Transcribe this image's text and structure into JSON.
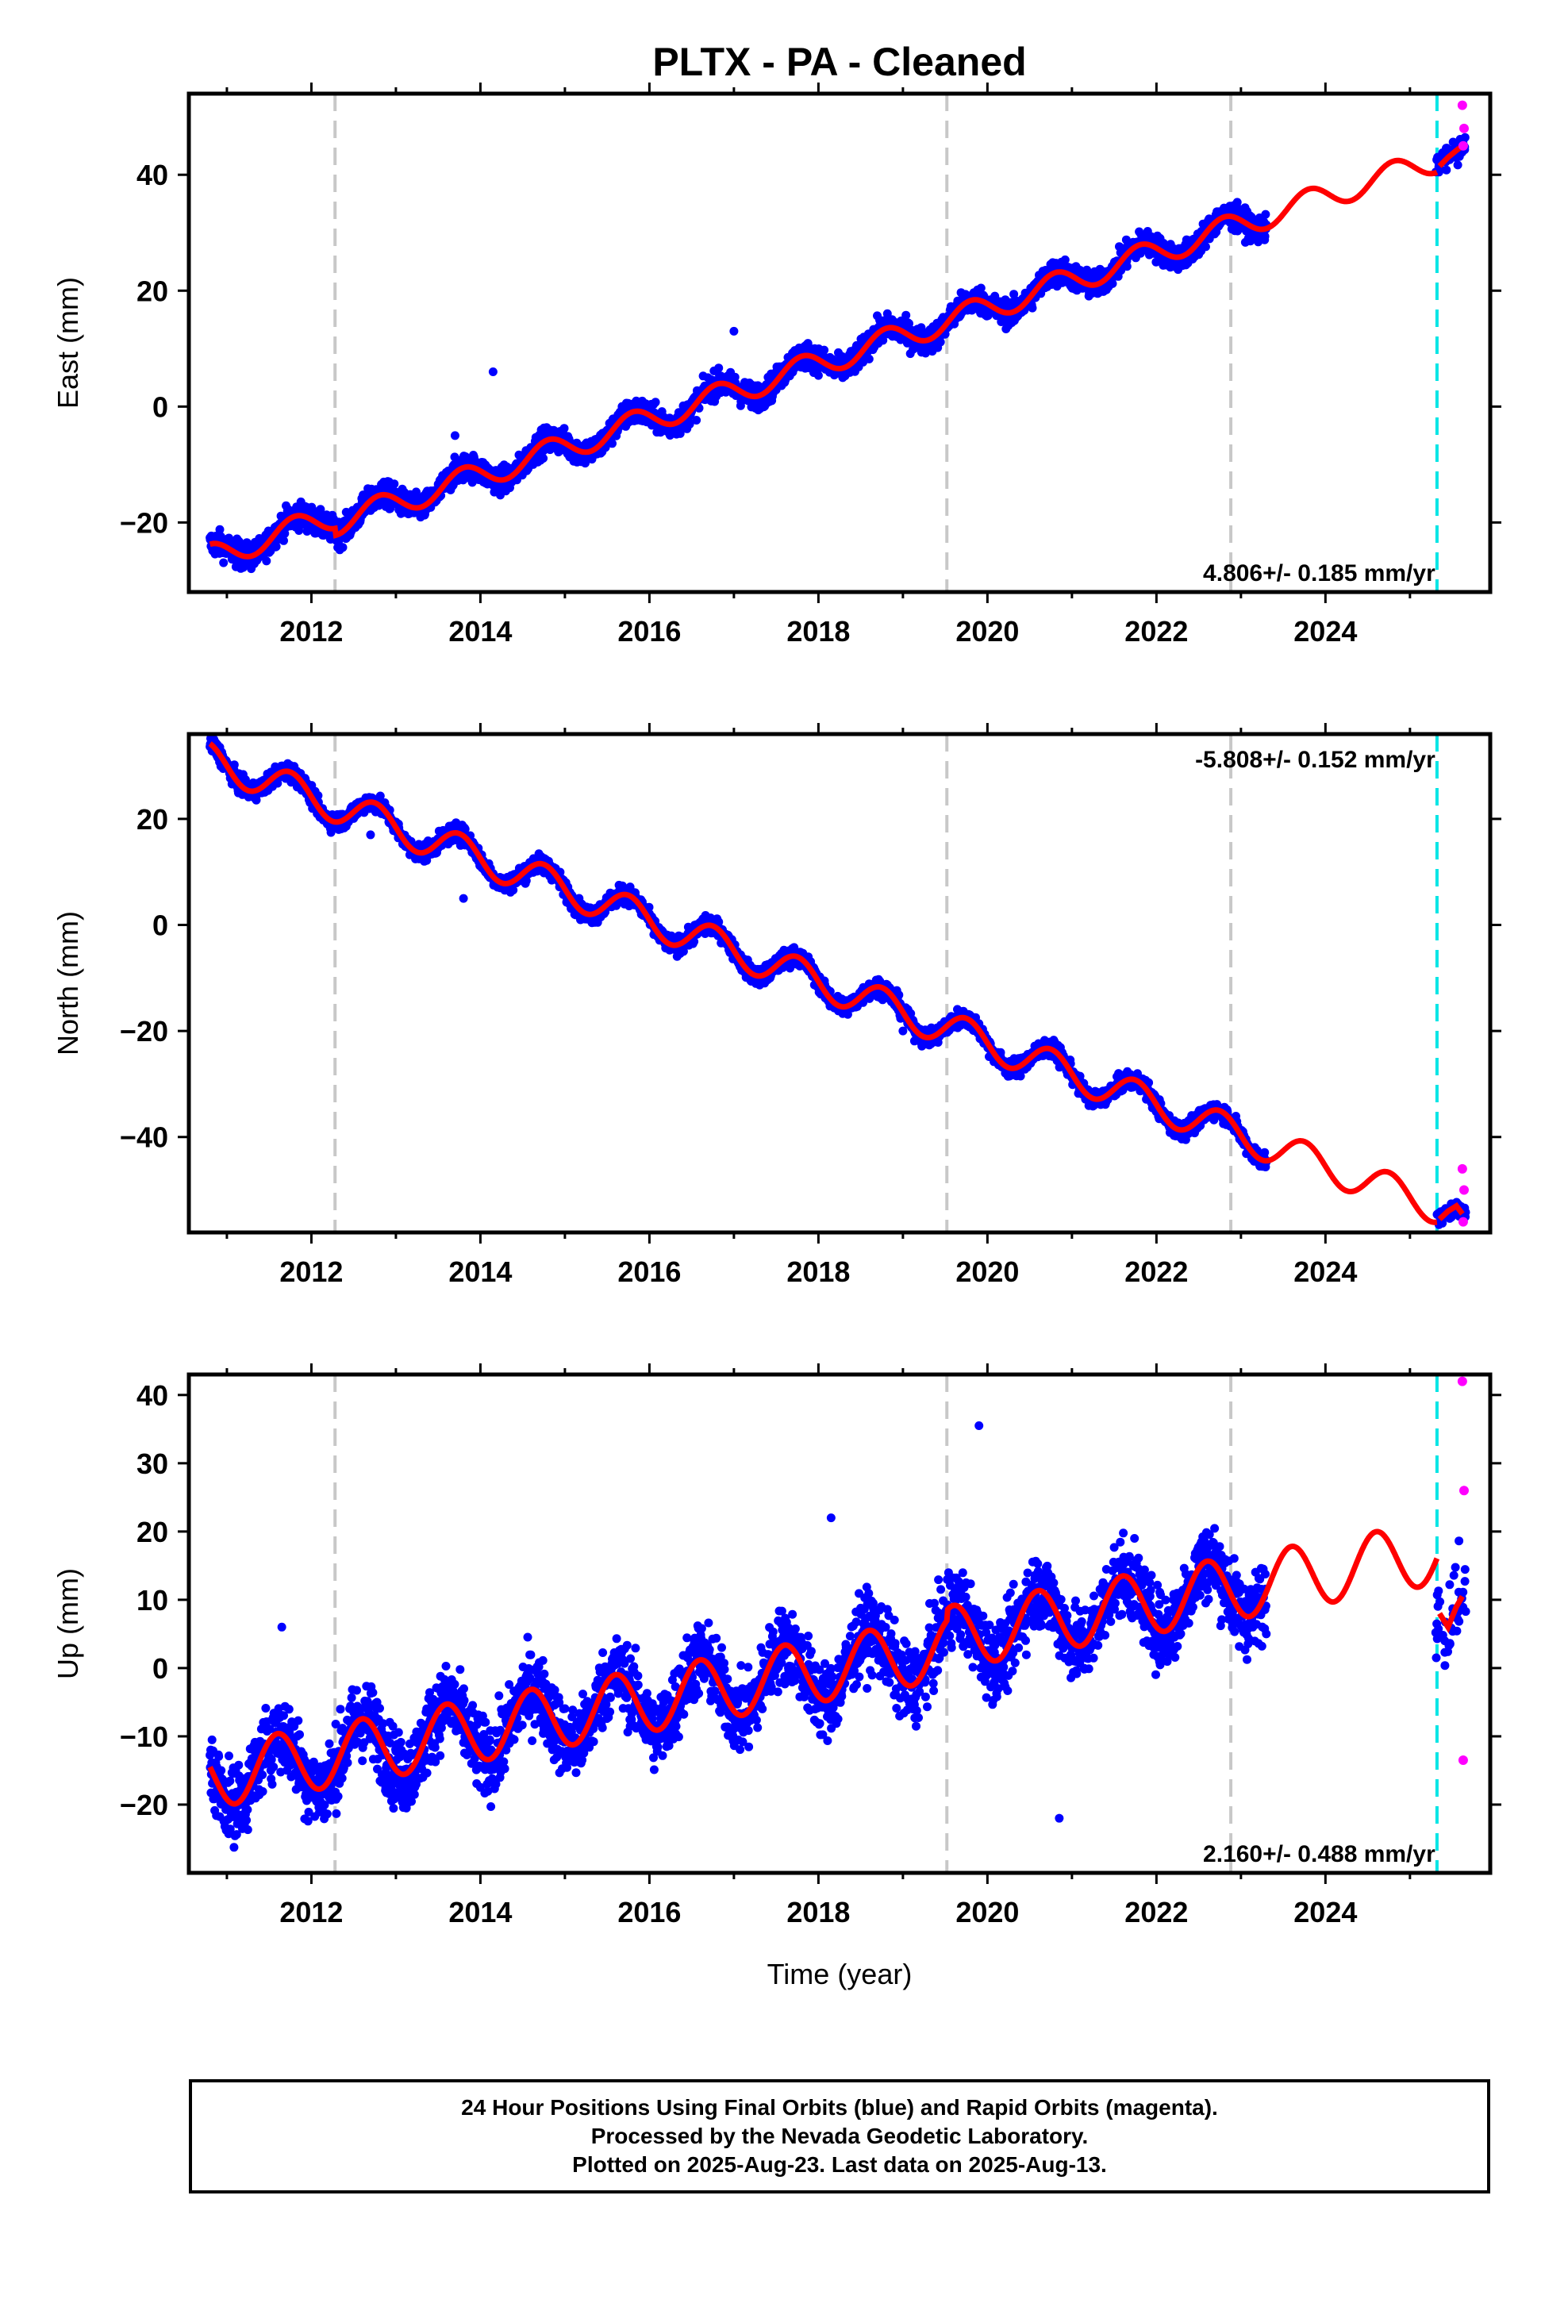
{
  "chart_data": {
    "type": "scatter",
    "title": "PLTX  - PA - Cleaned",
    "xlabel": "Time (year)",
    "xlim": [
      2010.55,
      2025.95
    ],
    "xticks": [
      2012,
      2014,
      2016,
      2018,
      2020,
      2022,
      2024
    ],
    "vlines_gray": [
      2012.28,
      2019.52,
      2022.88
    ],
    "vline_cyan": 2025.32,
    "panels": [
      {
        "ylabel": "East (mm)",
        "ylim": [
          -32,
          54
        ],
        "yticks": [
          -20,
          0,
          20,
          40
        ],
        "rate": "4.806+/- 0.185 mm/yr",
        "rate_pos": "bottom",
        "rate_x": 2025.3,
        "trend": {
          "t0": 2011.0,
          "y0": -25.0,
          "slope": 4.806,
          "amp": 2.2,
          "phase": 0.55
        },
        "steps": [
          {
            "at": 2012.28,
            "dy": -1.2
          }
        ],
        "noise": 1.6,
        "gap_model_end": 2025.32,
        "post_gap": {
          "t": [
            2025.35,
            2025.45,
            2025.55,
            2025.62
          ],
          "y": [
            41.5,
            43.0,
            44.2,
            45.0
          ]
        },
        "magenta": [
          {
            "x": 2025.62,
            "y": 52
          },
          {
            "x": 2025.64,
            "y": 48
          },
          {
            "x": 2025.63,
            "y": 45
          }
        ],
        "outliers": [
          {
            "x": 2014.15,
            "y": 6
          },
          {
            "x": 2013.7,
            "y": -5
          },
          {
            "x": 2017.0,
            "y": 13
          }
        ]
      },
      {
        "ylabel": "North (mm)",
        "ylim": [
          -58,
          36
        ],
        "yticks": [
          -40,
          -20,
          0,
          20
        ],
        "rate": "-5.808+/- 0.152 mm/yr",
        "rate_pos": "top",
        "rate_x": 2025.3,
        "trend": {
          "t0": 2011.0,
          "y0": 30.0,
          "slope": -5.808,
          "amp": 3.2,
          "phase": 0.5
        },
        "steps": [
          {
            "at": 2012.28,
            "dy": 0.0
          },
          {
            "at": 2025.32,
            "dy": -4.0
          }
        ],
        "noise": 1.2,
        "gap_model_end": 2025.32,
        "post_gap": {
          "t": [
            2025.35,
            2025.45,
            2025.55,
            2025.62
          ],
          "y": [
            -55.5,
            -54.0,
            -53.0,
            -54.5
          ]
        },
        "magenta": [
          {
            "x": 2025.62,
            "y": -46
          },
          {
            "x": 2025.64,
            "y": -50
          },
          {
            "x": 2025.63,
            "y": -56
          }
        ],
        "outliers": [
          {
            "x": 2012.7,
            "y": 17
          },
          {
            "x": 2013.8,
            "y": 5
          },
          {
            "x": 2019.0,
            "y": -20
          }
        ]
      },
      {
        "ylabel": "Up (mm)",
        "ylim": [
          -30,
          43
        ],
        "yticks": [
          -20,
          -10,
          0,
          10,
          20,
          30,
          40
        ],
        "rate": "2.160+/- 0.488 mm/yr",
        "rate_pos": "bottom",
        "rate_x": 2025.3,
        "trend": {
          "t0": 2011.0,
          "y0": -15.5,
          "slope": 2.16,
          "amp": 4.6,
          "phase": 0.35
        },
        "steps": [
          {
            "at": 2012.28,
            "dy": 0.0
          },
          {
            "at": 2019.52,
            "dy": 1.5
          }
        ],
        "noise": 4.0,
        "gap_model_end": 2025.32,
        "post_gap": {
          "t": [
            2025.35,
            2025.45,
            2025.55,
            2025.62
          ],
          "y": [
            8.0,
            6.0,
            9.0,
            10.5
          ]
        },
        "magenta": [
          {
            "x": 2025.62,
            "y": 42
          },
          {
            "x": 2025.64,
            "y": 26
          },
          {
            "x": 2025.63,
            "y": -13.5
          }
        ],
        "outliers": [
          {
            "x": 2019.9,
            "y": 35.5
          },
          {
            "x": 2020.85,
            "y": -22
          },
          {
            "x": 2018.15,
            "y": 22
          },
          {
            "x": 2011.65,
            "y": 6
          }
        ]
      }
    ],
    "data_start": 2010.8,
    "data_end": 2023.3
  },
  "footer": {
    "line1": "24 Hour Positions Using Final Orbits (blue) and Rapid Orbits (magenta).",
    "line2": "Processed by the Nevada Geodetic Laboratory.",
    "line3": "Plotted on 2025-Aug-23. Last data on 2025-Aug-13."
  },
  "colors": {
    "data": "#0000ff",
    "rapid": "#ff00ff",
    "model": "#ff0000",
    "offset": "#c8c8c8",
    "cyan": "#00e5e5"
  }
}
